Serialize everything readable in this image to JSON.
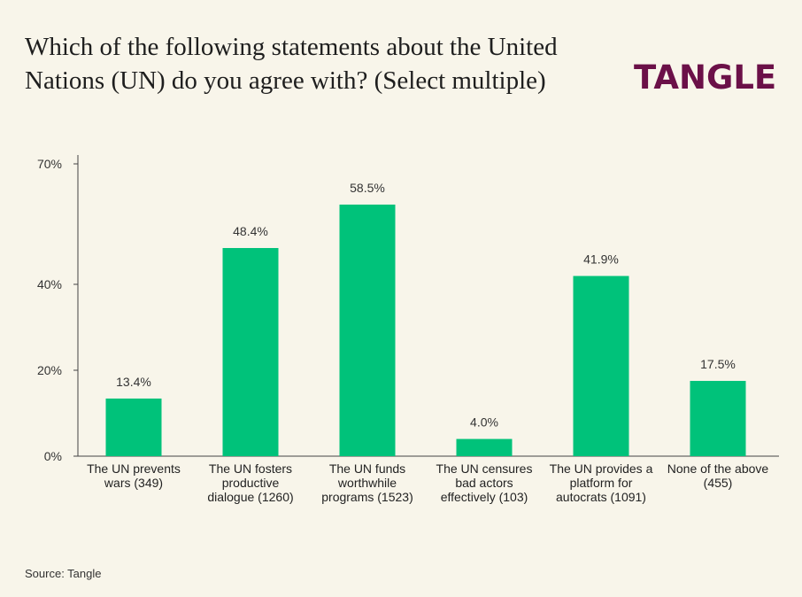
{
  "title": "Which of the following statements about the United Nations (UN) do you agree with? (Select multiple)",
  "logo_text": "TANGLE",
  "source": "Source: Tangle",
  "colors": {
    "bar": "#00c27a",
    "logo": "#6b1048",
    "background": "#f8f5ea"
  },
  "chart_data": {
    "type": "bar",
    "categories": [
      [
        "The UN prevents",
        "wars (349)"
      ],
      [
        "The UN fosters",
        "productive",
        "dialogue (1260)"
      ],
      [
        "The UN funds",
        "worthwhile",
        "programs (1523)"
      ],
      [
        "The UN censures",
        "bad actors",
        "effectively (103)"
      ],
      [
        "The UN provides a",
        "platform for",
        "autocrats (1091)"
      ],
      [
        "None of the above",
        "(455)"
      ]
    ],
    "values": [
      13.4,
      48.4,
      58.5,
      4.0,
      41.9,
      17.5
    ],
    "value_labels": [
      "13.4%",
      "48.4%",
      "58.5%",
      "4.0%",
      "41.9%",
      "17.5%"
    ],
    "y_ticks": [
      {
        "value": 0,
        "label": "0%"
      },
      {
        "value": 20,
        "label": "20%"
      },
      {
        "value": 40,
        "label": "40%"
      },
      {
        "value": 70,
        "label": "70%"
      }
    ],
    "ylim": [
      0,
      70
    ],
    "grid": false
  }
}
